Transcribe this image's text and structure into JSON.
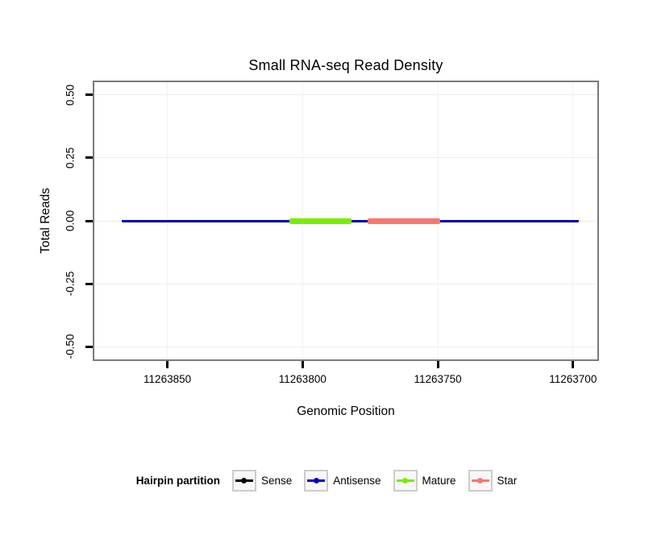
{
  "chart_data": {
    "type": "line",
    "title": "Small RNA-seq Read Density",
    "xlabel": "Genomic Position",
    "ylabel": "Total Reads",
    "x_axis": {
      "reversed": true,
      "lim": [
        11263877,
        11263691
      ],
      "ticks": [
        {
          "value": 11263850,
          "label": "11263850"
        },
        {
          "value": 11263800,
          "label": "11263800"
        },
        {
          "value": 11263750,
          "label": "11263750"
        },
        {
          "value": 11263700,
          "label": "11263700"
        }
      ]
    },
    "y_axis": {
      "lim": [
        -0.55,
        0.55
      ],
      "ticks": [
        {
          "value": 0.5,
          "label": "0.50"
        },
        {
          "value": 0.25,
          "label": "0.25"
        },
        {
          "value": 0,
          "label": "0.00"
        },
        {
          "value": -0.25,
          "label": "-0.25"
        },
        {
          "value": -0.5,
          "label": "-0.50"
        }
      ]
    },
    "grid": true,
    "series": [
      {
        "name": "Sense",
        "color": "#000000",
        "x_start": 11263867,
        "x_end": 11263698,
        "y": 0,
        "line_width": 3
      },
      {
        "name": "Antisense",
        "color": "#0000CC",
        "x_start": 11263867,
        "x_end": 11263698,
        "y": 0,
        "line_width": 1.5
      },
      {
        "name": "Mature",
        "color": "#76EE00",
        "x_start": 11263805,
        "x_end": 11263782,
        "y": 0,
        "line_width": 7
      },
      {
        "name": "Star",
        "color": "#F8766D",
        "x_start": 11263776,
        "x_end": 11263749,
        "y": 0,
        "line_width": 7
      }
    ]
  },
  "legend": {
    "title": "Hairpin partition",
    "position": "bottom",
    "items": [
      {
        "label": "Sense",
        "color": "#000000"
      },
      {
        "label": "Antisense",
        "color": "#0000CC"
      },
      {
        "label": "Mature",
        "color": "#76EE00"
      },
      {
        "label": "Star",
        "color": "#F8766D"
      }
    ]
  }
}
